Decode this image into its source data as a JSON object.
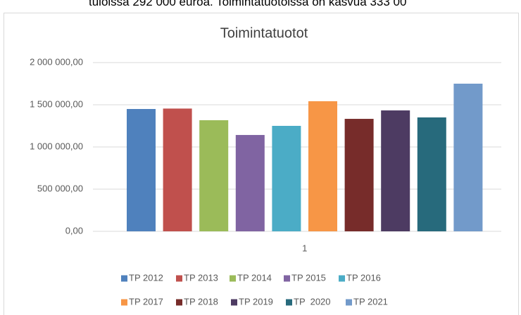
{
  "caption": "tuloissa 292 000 euroa. Toimintatuotoissa on kasvua 333 00",
  "chart_data": {
    "type": "bar",
    "title": "Toimintatuotot",
    "categories": [
      "1"
    ],
    "series": [
      {
        "name": "TP 2012",
        "color": "#4f81bd",
        "values": [
          1450000
        ]
      },
      {
        "name": "TP 2013",
        "color": "#c0504d",
        "values": [
          1455000
        ]
      },
      {
        "name": "TP 2014",
        "color": "#9bbb59",
        "values": [
          1317000
        ]
      },
      {
        "name": "TP 2015",
        "color": "#8064a2",
        "values": [
          1142000
        ]
      },
      {
        "name": "TP 2016",
        "color": "#4bacc6",
        "values": [
          1250000
        ]
      },
      {
        "name": "TP 2017",
        "color": "#f79646",
        "values": [
          1542000
        ]
      },
      {
        "name": "TP 2018",
        "color": "#772c2a",
        "values": [
          1333000
        ]
      },
      {
        "name": "TP 2019",
        "color": "#4d3b62",
        "values": [
          1433000
        ]
      },
      {
        "name": "TP  2020",
        "color": "#276a7c",
        "values": [
          1350000
        ]
      },
      {
        "name": "TP 2021",
        "color": "#729aca",
        "values": [
          1750000
        ]
      }
    ],
    "ylim": [
      0,
      2000000
    ],
    "yticks": [
      {
        "value": 0,
        "label": "0,00"
      },
      {
        "value": 500000,
        "label": "500 000,00"
      },
      {
        "value": 1000000,
        "label": "1 000 000,00"
      },
      {
        "value": 1500000,
        "label": "1 500 000,00"
      },
      {
        "value": 2000000,
        "label": "2 000 000,00"
      }
    ],
    "grid": true,
    "legend": "bottom"
  }
}
